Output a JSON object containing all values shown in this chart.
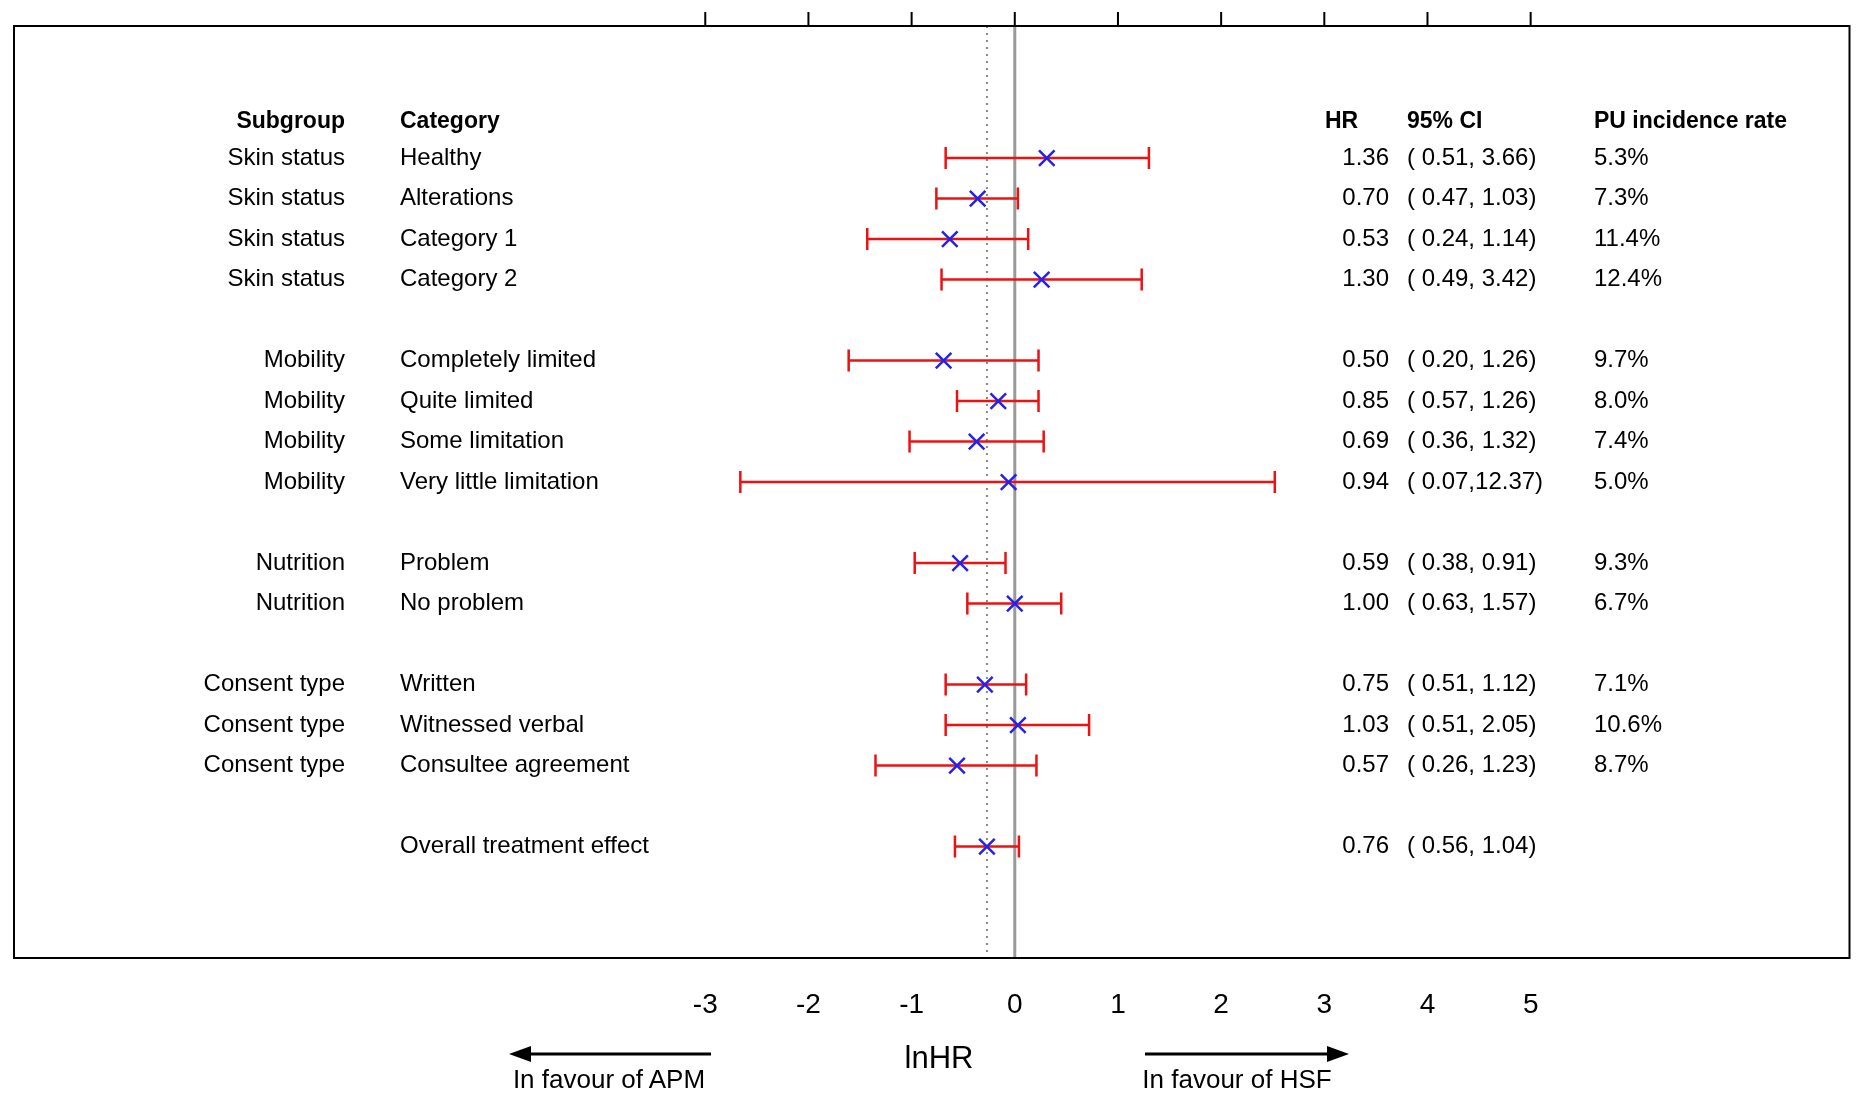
{
  "chart_data": {
    "type": "scatter",
    "orientation": "horizontal",
    "xlabel": "lnHR",
    "marker": "cross",
    "legend": false,
    "grid": false,
    "categories": [
      "Healthy",
      "Alterations",
      "Category 1",
      "Category 2",
      null,
      "Completely limited",
      "Quite limited",
      "Some limitation",
      "Very little limitation",
      null,
      "Problem",
      "No problem",
      null,
      "Written",
      "Witnessed verbal",
      "Consultee agreement",
      null,
      "Overall treatment effect"
    ],
    "color": "#2222ee",
    "values": [
      0.31,
      -0.36,
      -0.63,
      0.26,
      null,
      -0.69,
      -0.16,
      -0.37,
      -0.06,
      null,
      -0.53,
      0,
      null,
      -0.29,
      0.03,
      -0.56,
      null,
      -0.27
    ],
    "errors": [
      [
        -0.67,
        1.3
      ],
      [
        -0.76,
        0.03
      ],
      [
        -1.43,
        0.13
      ],
      [
        -0.71,
        1.23
      ],
      null,
      [
        -1.61,
        0.23
      ],
      [
        -0.56,
        0.23
      ],
      [
        -1.02,
        0.28
      ],
      [
        -2.66,
        2.52
      ],
      null,
      [
        -0.97,
        -0.09
      ],
      [
        -0.46,
        0.45
      ],
      null,
      [
        -0.67,
        0.11
      ],
      [
        -0.67,
        0.72
      ],
      [
        -1.35,
        0.21
      ],
      null,
      [
        -0.58,
        0.04
      ]
    ],
    "xlim": [
      -9.7,
      8.1
    ],
    "xticks": [
      -3,
      -2,
      -1,
      0,
      1,
      2,
      3,
      4,
      5
    ],
    "ref_lines": [
      {
        "axis": "x",
        "value": 0,
        "color": "#999999",
        "line_style": "solid"
      },
      {
        "axis": "x",
        "value": -0.27,
        "color": "#888888",
        "line_style": "dotted"
      }
    ],
    "annotations": [
      "Subgroup",
      "Category",
      "HR",
      "95% CI",
      "PU incidence rate",
      "In favour of APM",
      "In favour of HSF",
      "Skin status",
      "1.36",
      "( 0.51, 3.66)",
      "5.3%",
      "Skin status",
      "0.70",
      "( 0.47, 1.03)",
      "7.3%",
      "Skin status",
      "0.53",
      "( 0.24, 1.14)",
      "11.4%",
      "Skin status",
      "1.30",
      "( 0.49, 3.42)",
      "12.4%",
      "Mobility",
      "0.50",
      "( 0.20, 1.26)",
      "9.7%",
      "Mobility",
      "0.85",
      "( 0.57, 1.26)",
      "8.0%",
      "Mobility",
      "0.69",
      "( 0.36, 1.32)",
      "7.4%",
      "Mobility",
      "0.94",
      "( 0.07,12.37)",
      "5.0%",
      "Nutrition",
      "0.59",
      "( 0.38, 0.91)",
      "9.3%",
      "Nutrition",
      "1.00",
      "( 0.63, 1.57)",
      "6.7%",
      "Consent type",
      "0.75",
      "( 0.51, 1.12)",
      "7.1%",
      "Consent type",
      "1.03",
      "( 0.51, 2.05)",
      "10.6%",
      "Consent type",
      "0.57",
      "( 0.26, 1.23)",
      "8.7%",
      "0.76",
      "( 0.56, 1.04)"
    ]
  }
}
